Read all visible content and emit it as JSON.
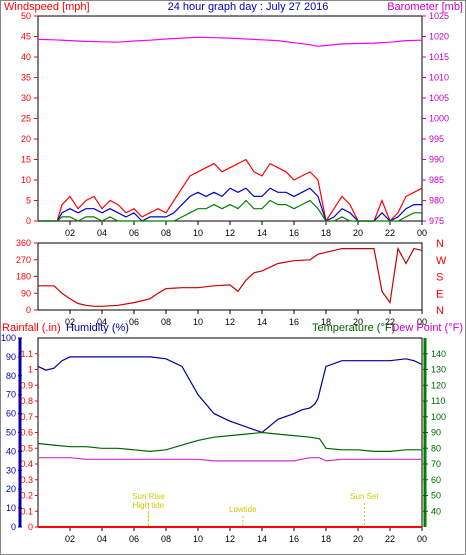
{
  "header": {
    "left": "Windspeed [mph]",
    "center": "24 hour graph day : July 27 2016",
    "right": "Barometer [mb]"
  },
  "panel3_labels": {
    "rainfall": "Rainfall (.in)",
    "humidity": "Humidity (%)",
    "temperature": "Temperature (°F)",
    "dewpoint": "Dew Point (°F)"
  },
  "events": [
    {
      "label": "Sun Rise",
      "hour": 6.9
    },
    {
      "label": "High tide",
      "hour": 6.9
    },
    {
      "label": "Lowtide",
      "hour": 12.8
    },
    {
      "label": "Sun Set",
      "hour": 20.4
    }
  ],
  "colors": {
    "wind_gust": "#ff0000",
    "wind_avg": "#0000cc",
    "wind_low": "#008000",
    "barometer": "#ff00ff",
    "direction": "#cc0000",
    "humidity": "#000099",
    "temperature": "#006600",
    "dewpoint": "#cc33cc",
    "rain": "#ff0000",
    "events": "#cccc00"
  },
  "chart_data": [
    {
      "type": "line",
      "title": "24 hour graph day : July 27 2016",
      "x_ticks": [
        "02",
        "04",
        "06",
        "08",
        "10",
        "12",
        "14",
        "16",
        "18",
        "20",
        "22",
        "00"
      ],
      "xlim": [
        0,
        24
      ],
      "y_left": {
        "label": "Windspeed [mph]",
        "ylim": [
          0,
          50
        ],
        "ticks": [
          0,
          5,
          10,
          15,
          20,
          25,
          30,
          35,
          40,
          45,
          50
        ]
      },
      "y_right": {
        "label": "Barometer [mb]",
        "ylim": [
          975,
          1025
        ],
        "ticks": [
          975,
          980,
          985,
          990,
          995,
          1000,
          1005,
          1010,
          1015,
          1020,
          1025
        ]
      },
      "series": [
        {
          "name": "gust",
          "axis": "left",
          "x": [
            0,
            1.2,
            1.5,
            2,
            2.5,
            3,
            3.5,
            4,
            4.5,
            5,
            5.5,
            6,
            6.5,
            7,
            7.5,
            8,
            8.5,
            9,
            9.5,
            10,
            10.5,
            11,
            11.5,
            12,
            12.5,
            13,
            13.5,
            14,
            14.5,
            15,
            15.5,
            16,
            16.5,
            17,
            17.5,
            18,
            18.5,
            19,
            19.5,
            20,
            20.5,
            21,
            21.5,
            22,
            22.5,
            23,
            23.5,
            24
          ],
          "y": [
            0,
            0,
            4,
            6,
            3,
            5,
            6,
            3,
            5,
            4,
            2,
            3,
            1,
            2,
            3,
            2,
            5,
            8,
            11,
            12,
            13,
            14,
            12,
            13,
            14,
            15,
            12,
            11,
            14,
            13,
            12,
            10,
            11,
            12,
            10,
            0,
            3,
            6,
            4,
            0,
            0,
            0,
            5,
            0,
            2,
            6,
            7,
            8
          ]
        },
        {
          "name": "average",
          "axis": "left",
          "x": [
            0,
            1.2,
            1.5,
            2,
            2.5,
            3,
            3.5,
            4,
            4.5,
            5,
            5.5,
            6,
            6.5,
            7,
            7.5,
            8,
            8.5,
            9,
            9.5,
            10,
            10.5,
            11,
            11.5,
            12,
            12.5,
            13,
            13.5,
            14,
            14.5,
            15,
            15.5,
            16,
            16.5,
            17,
            17.5,
            18,
            18.5,
            19,
            19.5,
            20,
            20.5,
            21,
            21.5,
            22,
            22.5,
            23,
            23.5,
            24
          ],
          "y": [
            0,
            0,
            2,
            3,
            2,
            3,
            3,
            2,
            3,
            2,
            1,
            2,
            0,
            1,
            1,
            1,
            2,
            4,
            6,
            7,
            6,
            7,
            6,
            8,
            7,
            8,
            6,
            6,
            8,
            7,
            7,
            6,
            7,
            8,
            6,
            0,
            1,
            3,
            2,
            0,
            0,
            0,
            2,
            0,
            1,
            3,
            4,
            4
          ]
        },
        {
          "name": "low",
          "axis": "left",
          "x": [
            0,
            1.2,
            1.5,
            2,
            2.5,
            3,
            3.5,
            4,
            4.5,
            5,
            5.5,
            6,
            6.5,
            7,
            7.5,
            8,
            8.5,
            9,
            9.5,
            10,
            10.5,
            11,
            11.5,
            12,
            12.5,
            13,
            13.5,
            14,
            14.5,
            15,
            15.5,
            16,
            16.5,
            17,
            17.5,
            18,
            18.5,
            19,
            19.5,
            20,
            20.5,
            21,
            21.5,
            22,
            22.5,
            23,
            23.5,
            24
          ],
          "y": [
            0,
            0,
            1,
            1,
            0,
            1,
            1,
            0,
            1,
            0,
            0,
            0,
            0,
            0,
            0,
            0,
            0,
            1,
            2,
            3,
            3,
            4,
            3,
            4,
            3,
            5,
            3,
            3,
            5,
            4,
            4,
            3,
            4,
            5,
            3,
            0,
            0,
            1,
            0,
            0,
            0,
            0,
            0,
            0,
            0,
            1,
            2,
            2
          ]
        },
        {
          "name": "barometer",
          "axis": "right",
          "x": [
            0,
            1,
            2,
            3,
            4,
            5,
            6,
            7,
            8,
            9,
            10,
            11,
            12,
            13,
            14,
            15,
            16,
            17,
            17.5,
            18,
            19,
            20,
            21,
            22,
            23,
            24
          ],
          "y": [
            1019.3,
            1019.2,
            1019.0,
            1018.8,
            1018.7,
            1018.6,
            1018.9,
            1019.1,
            1019.4,
            1019.6,
            1019.8,
            1019.7,
            1019.6,
            1019.4,
            1019.2,
            1019.0,
            1018.5,
            1018.0,
            1017.6,
            1017.8,
            1018.2,
            1018.3,
            1018.4,
            1018.6,
            1019.0,
            1019.1
          ]
        }
      ]
    },
    {
      "type": "line",
      "title": "",
      "x_ticks": [
        "02",
        "04",
        "06",
        "08",
        "10",
        "12",
        "14",
        "16",
        "18",
        "20",
        "22",
        "00"
      ],
      "xlim": [
        0,
        24
      ],
      "y_left": {
        "ylim": [
          0,
          360
        ],
        "ticks": [
          0,
          90,
          180,
          270,
          360
        ]
      },
      "y_right_labels": [
        "N",
        "W",
        "S",
        "E",
        "N"
      ],
      "series": [
        {
          "name": "direction",
          "axis": "left",
          "x": [
            0,
            1,
            1.5,
            2,
            2.5,
            3,
            3.5,
            4,
            5,
            6,
            7,
            7.5,
            8,
            9,
            10,
            11,
            12,
            12.5,
            13,
            13.5,
            14,
            14.5,
            15,
            16,
            17,
            17.5,
            18,
            18.5,
            19,
            20,
            21,
            21.5,
            22,
            22.5,
            23,
            23.5,
            24
          ],
          "y": [
            130,
            130,
            90,
            60,
            35,
            25,
            20,
            20,
            25,
            40,
            60,
            90,
            115,
            120,
            120,
            130,
            135,
            100,
            160,
            200,
            210,
            230,
            250,
            265,
            270,
            300,
            310,
            320,
            330,
            330,
            330,
            100,
            40,
            330,
            250,
            330,
            320
          ]
        }
      ]
    },
    {
      "type": "line",
      "title": "",
      "x_ticks": [
        "02",
        "04",
        "06",
        "08",
        "10",
        "12",
        "14",
        "16",
        "18",
        "20",
        "22",
        "00"
      ],
      "xlim": [
        0,
        24
      ],
      "y_left": {
        "label": "Humidity (%)",
        "ylim": [
          0,
          100
        ],
        "ticks": [
          0,
          10,
          20,
          30,
          40,
          50,
          60,
          70,
          80,
          90,
          100
        ]
      },
      "y_rain": {
        "label": "Rainfall (.in)",
        "ylim": [
          0,
          1.2
        ],
        "ticks": [
          0,
          0.1,
          0.2,
          0.3,
          0.4,
          0.5,
          0.6,
          0.7,
          0.8,
          0.9,
          1,
          1.1
        ]
      },
      "y_right": {
        "label": "Temperature (°F)",
        "ylim": [
          30,
          150
        ],
        "ticks": [
          40,
          50,
          60,
          70,
          80,
          90,
          100,
          110,
          120,
          130,
          140
        ]
      },
      "series": [
        {
          "name": "humidity",
          "axis": "left",
          "x": [
            0,
            0.5,
            1,
            1.5,
            2,
            3,
            4,
            6,
            7,
            8,
            9,
            10,
            11,
            12,
            13,
            14,
            15,
            16,
            16.5,
            17,
            17.3,
            17.5,
            17.7,
            18,
            19,
            20,
            21,
            22,
            23,
            23.5,
            24
          ],
          "y": [
            85,
            83,
            84,
            88,
            90,
            90,
            90,
            90,
            90,
            89,
            85,
            70,
            60,
            56,
            53,
            50,
            57,
            60,
            62,
            63,
            65,
            68,
            75,
            85,
            88,
            88,
            88,
            88,
            89,
            88,
            86
          ]
        },
        {
          "name": "temperature",
          "axis": "right",
          "x": [
            0,
            1,
            2,
            3,
            4,
            5,
            6,
            7,
            8,
            9,
            10,
            11,
            12,
            13,
            14,
            15,
            16,
            17,
            17.6,
            18,
            19,
            20,
            21,
            22,
            23,
            24
          ],
          "y": [
            83,
            82,
            81,
            81,
            80,
            80,
            79,
            78,
            79,
            82,
            85,
            87,
            88,
            89,
            90,
            89,
            88,
            87,
            86,
            80,
            79,
            79,
            78,
            78,
            79,
            79
          ]
        },
        {
          "name": "dewpoint",
          "axis": "right",
          "x": [
            0,
            1,
            2,
            3,
            4,
            5,
            6,
            7,
            8,
            9,
            10,
            11,
            12,
            13,
            14,
            15,
            16,
            17,
            17.6,
            18,
            19,
            20,
            21,
            22,
            23,
            24
          ],
          "y": [
            74,
            74,
            74,
            73,
            73,
            73,
            73,
            73,
            73,
            73,
            73,
            72,
            72,
            72,
            72,
            72,
            72,
            74,
            74,
            72,
            73,
            73,
            73,
            73,
            73,
            73
          ]
        },
        {
          "name": "rainfall",
          "axis": "rain",
          "x": [
            0,
            24
          ],
          "y": [
            0,
            0
          ]
        }
      ]
    }
  ]
}
